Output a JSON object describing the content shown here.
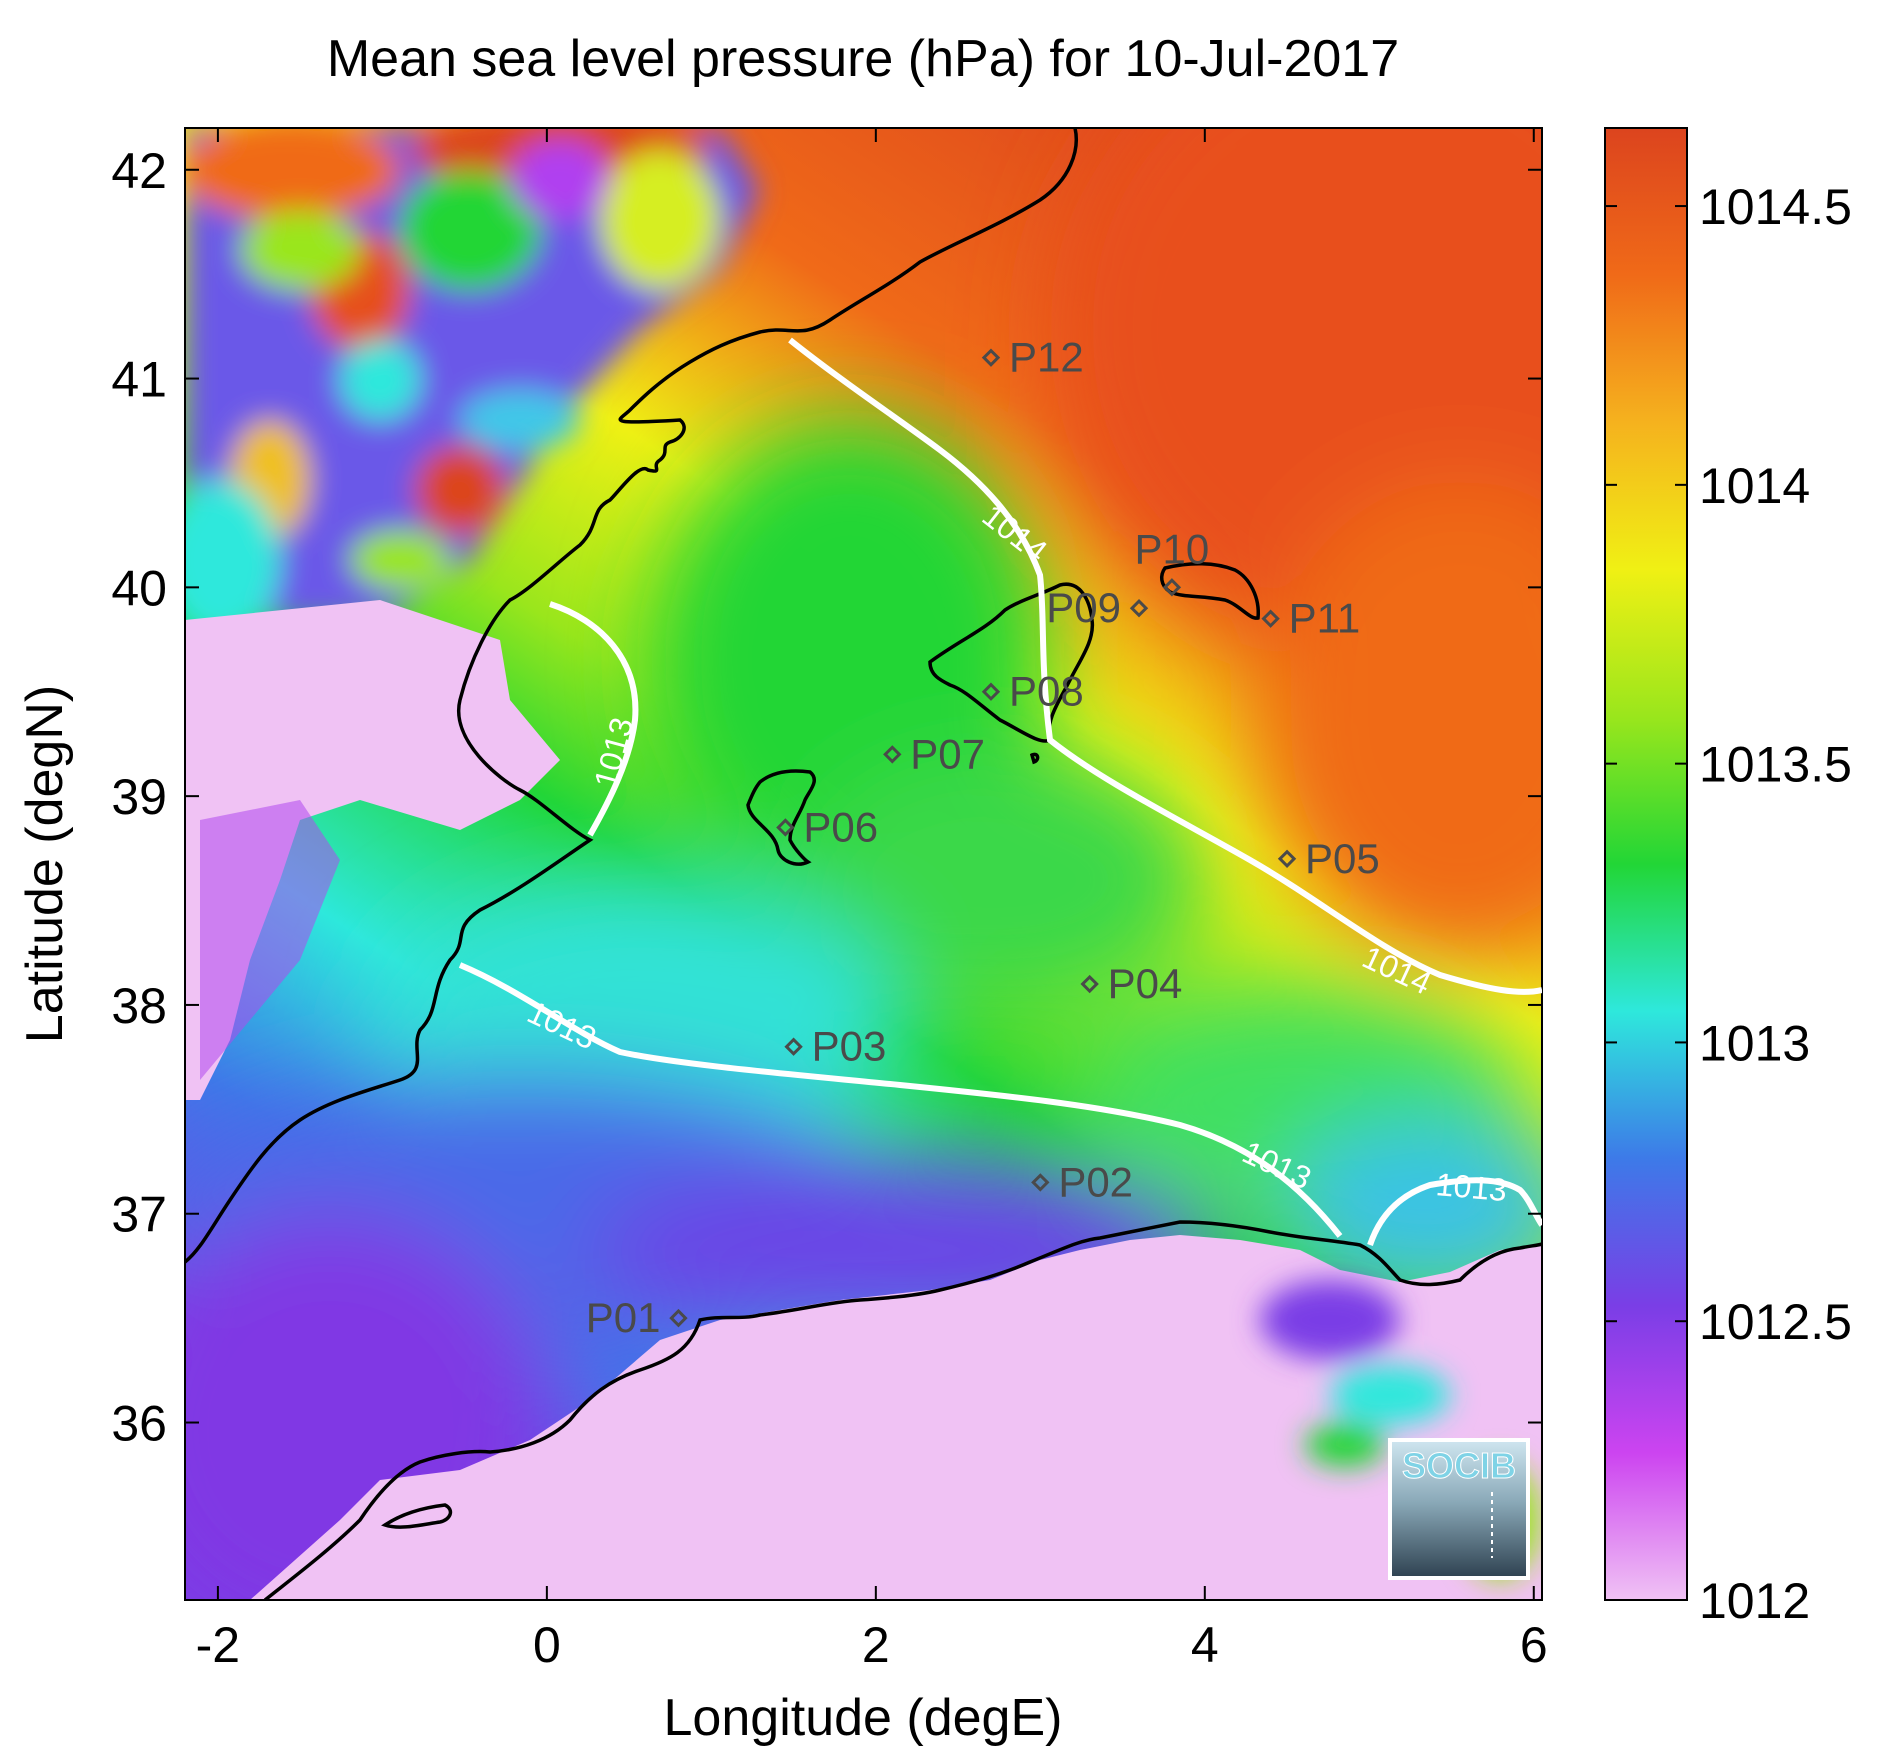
{
  "chart_data": {
    "type": "heatmap",
    "title": "Mean sea level pressure (hPa) for 10-Jul-2017",
    "xlabel": "Longitude (degE)",
    "ylabel": "Latitude (degN)",
    "xlim": [
      -2.2,
      6.05
    ],
    "ylim": [
      35.15,
      42.2
    ],
    "xticks": [
      -2,
      0,
      2,
      4,
      6
    ],
    "xtick_labels": [
      "-2",
      "0",
      "2",
      "4",
      "6"
    ],
    "yticks": [
      36,
      37,
      38,
      39,
      40,
      41,
      42
    ],
    "ytick_labels": [
      "36",
      "37",
      "38",
      "39",
      "40",
      "41",
      "42"
    ],
    "colorbar": {
      "min": 1012,
      "max": 1014.64,
      "ticks": [
        1012,
        1012.5,
        1013,
        1013.5,
        1014,
        1014.5
      ],
      "tick_labels": [
        "1012",
        "1012.5",
        "1013",
        "1013.5",
        "1014",
        "1014.5"
      ],
      "colors": [
        "#f0c2f4",
        "#cc44f0",
        "#7a3ee6",
        "#3d7ae8",
        "#2ee8dc",
        "#22d636",
        "#9ae61c",
        "#f0f014",
        "#f5b21e",
        "#f06a18",
        "#dc441e"
      ]
    },
    "contours": [
      {
        "label": "1013",
        "label_positions": [
          [
            0.25,
            39.25
          ],
          [
            0.1,
            37.8
          ],
          [
            3.6,
            37.1
          ],
          [
            5.5,
            37.05
          ]
        ]
      },
      {
        "label": "1014",
        "label_positions": [
          [
            2.6,
            40.35
          ],
          [
            5.0,
            38.1
          ]
        ]
      }
    ],
    "stations": [
      {
        "name": "P01",
        "lon": 0.8,
        "lat": 36.5
      },
      {
        "name": "P02",
        "lon": 3.0,
        "lat": 37.15
      },
      {
        "name": "P03",
        "lon": 1.5,
        "lat": 37.8
      },
      {
        "name": "P04",
        "lon": 3.3,
        "lat": 38.1
      },
      {
        "name": "P05",
        "lon": 4.5,
        "lat": 38.7
      },
      {
        "name": "P06",
        "lon": 1.45,
        "lat": 38.85
      },
      {
        "name": "P07",
        "lon": 2.1,
        "lat": 39.2
      },
      {
        "name": "P08",
        "lon": 2.7,
        "lat": 39.5
      },
      {
        "name": "P09",
        "lon": 3.6,
        "lat": 39.9
      },
      {
        "name": "P10",
        "lon": 3.8,
        "lat": 40.0
      },
      {
        "name": "P11",
        "lon": 4.4,
        "lat": 39.85
      },
      {
        "name": "P12",
        "lon": 2.7,
        "lat": 41.1
      }
    ],
    "grid": false
  },
  "logo": {
    "text": "SOCIB"
  }
}
